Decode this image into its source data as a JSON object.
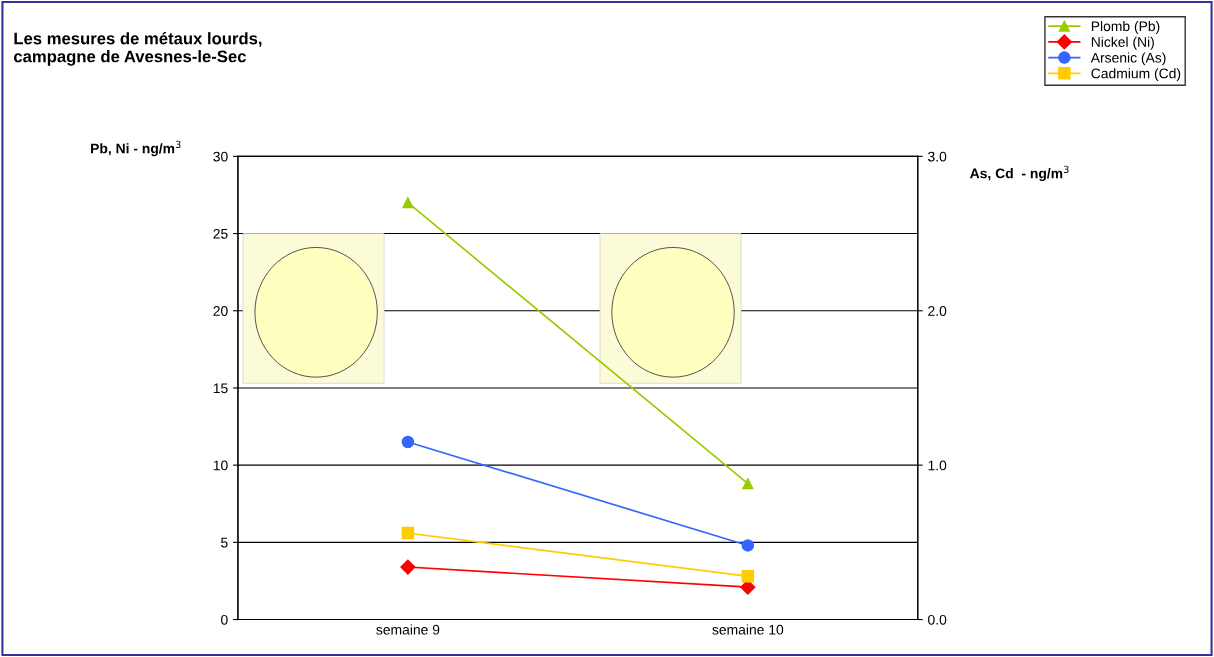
{
  "chart_data": {
    "type": "line",
    "title": "Les mesures de métaux lourds,\ncampagne de Avesnes-le-Sec",
    "ylabel": "Pb, Ni - ng/m$^{3}$",
    "y2label": "As, Cd  - ng/m$^{3}$",
    "categories": [
      "semaine 9",
      "semaine 10"
    ],
    "series": [
      {
        "name": "Plomb (Pb)",
        "color": "#99cc00",
        "values": [
          27,
          8.8
        ],
        "marker": "triangle"
      },
      {
        "name": "Nickel (Ni)",
        "color": "#ff0000",
        "values": [
          3.4,
          2.1
        ],
        "marker": "diamond"
      },
      {
        "name": "Arsenic (As)",
        "color": "#3366ff",
        "values": [
          1.15,
          0.48
        ],
        "marker": "circle",
        "axis": "y2"
      },
      {
        "name": "Cadmium (Cd)",
        "color": "#ffcc00",
        "values": [
          0.56,
          0.28
        ],
        "marker": "square",
        "axis": "y2"
      }
    ],
    "ylim": [
      0,
      30
    ],
    "yticks": [
      0,
      5,
      10,
      15,
      20,
      25,
      30
    ],
    "y2lim": [
      0,
      3
    ],
    "y2ticks": [
      {
        "value": 0,
        "label": "0.0"
      },
      {
        "value": 1,
        "label": "1.0"
      },
      {
        "value": 2,
        "label": "2.0"
      },
      {
        "value": 3,
        "label": "3.0"
      }
    ],
    "grid": "y",
    "legend": "top right"
  }
}
